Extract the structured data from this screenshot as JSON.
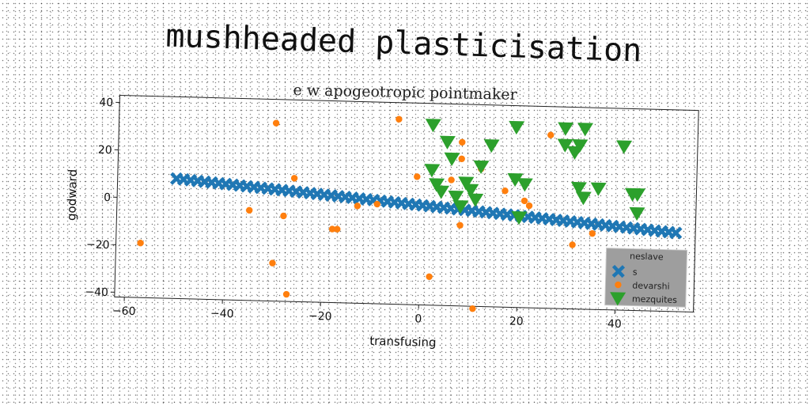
{
  "chart_data": {
    "type": "scatter",
    "title": "mushheaded plasticisation",
    "subtitle": "e w apogeotropic pointmaker",
    "xlabel": "transfusing",
    "ylabel": "godward",
    "xlim": [
      -62,
      56
    ],
    "ylim": [
      -42,
      43
    ],
    "xticks": [
      -60,
      -40,
      -20,
      0,
      20,
      40
    ],
    "yticks": [
      -40,
      -20,
      0,
      20,
      40
    ],
    "grid": false,
    "legend": {
      "title": "neslave",
      "placement": "lower-right",
      "background": "#9e9e9e"
    },
    "series": [
      {
        "name": "s",
        "marker": "x",
        "color": "#1f77b4",
        "line": {
          "slope": -0.17,
          "intercept": 0.0,
          "x_start": -50,
          "x_end": 52,
          "count": 72
        }
      },
      {
        "name": "devarshi",
        "marker": "circle",
        "color": "#ff7f0e",
        "points": [
          [
            -57,
            -19
          ],
          [
            -30,
            33
          ],
          [
            -27,
            -39
          ],
          [
            -28,
            -6
          ],
          [
            -30,
            -26
          ],
          [
            -35,
            -4
          ],
          [
            -26,
            10
          ],
          [
            -18,
            -11
          ],
          [
            -17,
            -11
          ],
          [
            -13,
            -1
          ],
          [
            -9,
            0
          ],
          [
            -5,
            36
          ],
          [
            -1,
            12
          ],
          [
            2,
            -30
          ],
          [
            6,
            11
          ],
          [
            8,
            27
          ],
          [
            8,
            20
          ],
          [
            8,
            -8
          ],
          [
            11,
            -43
          ],
          [
            12,
            16
          ],
          [
            17,
            7
          ],
          [
            21,
            3
          ],
          [
            22,
            1
          ],
          [
            26,
            31
          ],
          [
            31,
            -15
          ],
          [
            35,
            -10
          ]
        ]
      },
      {
        "name": "mezquites",
        "marker": "triangle-down",
        "color": "#2ca02c",
        "points": [
          [
            2,
            34
          ],
          [
            5,
            27
          ],
          [
            6,
            20
          ],
          [
            2,
            15
          ],
          [
            3,
            9
          ],
          [
            4,
            6
          ],
          [
            7,
            4
          ],
          [
            8,
            0
          ],
          [
            9,
            10
          ],
          [
            10,
            7
          ],
          [
            11,
            3
          ],
          [
            12,
            17
          ],
          [
            14,
            26
          ],
          [
            19,
            34
          ],
          [
            19,
            12
          ],
          [
            21,
            10
          ],
          [
            20,
            -4
          ],
          [
            29,
            34
          ],
          [
            29,
            27
          ],
          [
            31,
            24
          ],
          [
            32,
            27
          ],
          [
            33,
            34
          ],
          [
            32,
            9
          ],
          [
            33,
            5
          ],
          [
            36,
            9
          ],
          [
            41,
            27
          ],
          [
            43,
            7
          ],
          [
            44,
            7
          ],
          [
            44,
            -1
          ]
        ]
      }
    ]
  }
}
